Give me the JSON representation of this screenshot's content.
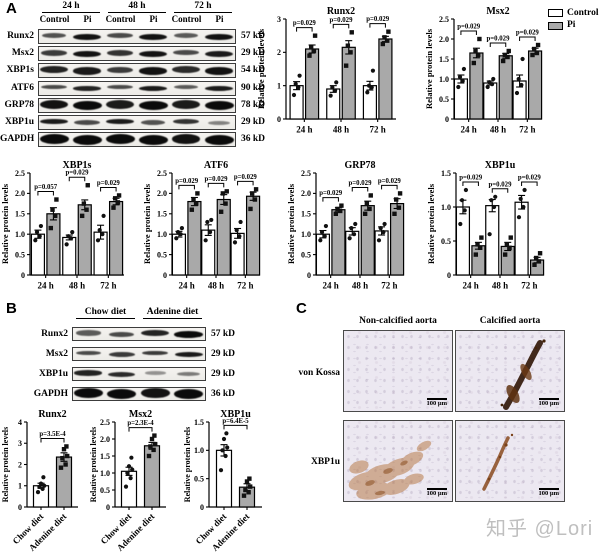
{
  "watermark": "知乎 @Lori",
  "legend": {
    "items": [
      {
        "label": "Control",
        "color": "#ffffff"
      },
      {
        "label": "Pi",
        "color": "#a9a9a9"
      }
    ]
  },
  "panel_a": {
    "label": "A",
    "blot": {
      "time_groups": [
        "24 h",
        "48 h",
        "72 h"
      ],
      "lane_labels": [
        "Control",
        "Pi",
        "Control",
        "Pi",
        "Control",
        "Pi"
      ],
      "rows": [
        {
          "protein": "Runx2",
          "kd": "57 kD",
          "thickness": 6,
          "bands": [
            0.55,
            0.95,
            0.6,
            0.95,
            0.5,
            0.95
          ]
        },
        {
          "protein": "Msx2",
          "kd": "29 kD",
          "thickness": 6,
          "bands": [
            0.7,
            0.95,
            0.75,
            0.95,
            0.6,
            0.9
          ]
        },
        {
          "protein": "XBP1s",
          "kd": "54 kD",
          "thickness": 7,
          "bands": [
            0.85,
            0.9,
            0.7,
            0.95,
            0.8,
            0.95
          ]
        },
        {
          "protein": "ATF6",
          "kd": "90 kD",
          "thickness": 4.5,
          "bands": [
            0.6,
            0.85,
            0.6,
            0.9,
            0.5,
            0.9
          ]
        },
        {
          "protein": "GRP78",
          "kd": "78 kD",
          "thickness": 8.5,
          "bands": [
            0.95,
            1,
            0.9,
            1,
            0.9,
            1
          ]
        },
        {
          "protein": "XBP1u",
          "kd": "29 kD",
          "thickness": 5.5,
          "bands": [
            0.9,
            0.6,
            0.9,
            0.55,
            0.75,
            0.25
          ]
        },
        {
          "protein": "GAPDH",
          "kd": "36 kD",
          "thickness": 9,
          "bands": [
            1,
            1,
            1,
            1,
            0.95,
            1
          ]
        }
      ]
    },
    "charts": [
      {
        "id": "a-runx2",
        "type": "bar",
        "title": "Runx2",
        "ylabel": "Relative protein levels",
        "ylim": [
          0,
          3
        ],
        "yticks": [
          0,
          1,
          2,
          3
        ],
        "ytick_labels": [
          "0",
          "1",
          "2",
          "3"
        ],
        "categories": [
          "24 h",
          "48 h",
          "72 h"
        ],
        "p_values": [
          "p=0.029",
          "p=0.029",
          "p=0.029"
        ],
        "series": [
          {
            "name": "Control",
            "color": "#ffffff",
            "marker": "circle",
            "values": [
              1.0,
              0.9,
              1.0
            ],
            "errors": [
              0.12,
              0.1,
              0.13
            ],
            "points": [
              [
                0.72,
                0.95,
                1.05,
                1.3
              ],
              [
                0.7,
                0.85,
                0.95,
                1.1
              ],
              [
                0.8,
                0.95,
                1.0,
                1.45
              ]
            ]
          },
          {
            "name": "Pi",
            "color": "#a9a9a9",
            "marker": "square",
            "values": [
              2.1,
              2.15,
              2.4
            ],
            "errors": [
              0.12,
              0.2,
              0.08
            ],
            "points": [
              [
                1.9,
                2.05,
                2.15,
                2.5
              ],
              [
                1.6,
                2.0,
                2.2,
                2.6
              ],
              [
                2.25,
                2.35,
                2.45,
                2.62
              ]
            ]
          }
        ]
      },
      {
        "id": "a-msx2",
        "type": "bar",
        "title": "Msx2",
        "ylabel": "Relative protein levels",
        "ylim": [
          0,
          2.5
        ],
        "yticks": [
          0,
          0.5,
          1,
          1.5,
          2,
          2.5
        ],
        "ytick_labels": [
          "0",
          "0.5",
          "1.0",
          "1.5",
          "2.0",
          "2.5"
        ],
        "categories": [
          "24 h",
          "48 h",
          "72 h"
        ],
        "p_values": [
          "p=0.029",
          "p=0.029",
          "p=0.029"
        ],
        "series": [
          {
            "name": "Control",
            "color": "#ffffff",
            "marker": "circle",
            "values": [
              1.0,
              0.9,
              0.95
            ],
            "errors": [
              0.1,
              0.05,
              0.15
            ],
            "points": [
              [
                0.8,
                0.95,
                1.05,
                1.25
              ],
              [
                0.8,
                0.87,
                0.92,
                1.0
              ],
              [
                0.65,
                0.85,
                1.0,
                1.5
              ]
            ]
          },
          {
            "name": "Pi",
            "color": "#a9a9a9",
            "marker": "square",
            "values": [
              1.65,
              1.58,
              1.7
            ],
            "errors": [
              0.12,
              0.06,
              0.07
            ],
            "points": [
              [
                1.4,
                1.6,
                1.7,
                2.0
              ],
              [
                1.45,
                1.55,
                1.6,
                1.7
              ],
              [
                1.6,
                1.65,
                1.75,
                1.85
              ]
            ]
          }
        ]
      },
      {
        "id": "a-xbp1s",
        "type": "bar",
        "title": "XBP1s",
        "ylabel": "Relative protein levels",
        "ylim": [
          0,
          2.5
        ],
        "yticks": [
          0,
          0.5,
          1,
          1.5,
          2,
          2.5
        ],
        "ytick_labels": [
          "0",
          "0.5",
          "1.0",
          "1.5",
          "2.0",
          "2.5"
        ],
        "categories": [
          "24 h",
          "48 h",
          "72 h"
        ],
        "p_values": [
          "p=0.057",
          "p=0.029",
          "p=0.029"
        ],
        "series": [
          {
            "name": "Control",
            "color": "#ffffff",
            "marker": "circle",
            "values": [
              1.0,
              0.92,
              1.05
            ],
            "errors": [
              0.1,
              0.06,
              0.17
            ],
            "points": [
              [
                0.85,
                0.95,
                1.05,
                1.2
              ],
              [
                0.75,
                0.9,
                0.95,
                1.05
              ],
              [
                0.85,
                1.0,
                1.1,
                1.45
              ]
            ]
          },
          {
            "name": "Pi",
            "color": "#a9a9a9",
            "marker": "square",
            "values": [
              1.5,
              1.72,
              1.8
            ],
            "errors": [
              0.15,
              0.12,
              0.08
            ],
            "points": [
              [
                1.15,
                1.45,
                1.6,
                1.85
              ],
              [
                1.45,
                1.6,
                1.75,
                2.2
              ],
              [
                1.65,
                1.78,
                1.88,
                1.95
              ]
            ]
          }
        ]
      },
      {
        "id": "a-atf6",
        "type": "bar",
        "title": "ATF6",
        "ylabel": "Relative protein levels",
        "ylim": [
          0,
          2.5
        ],
        "yticks": [
          0,
          0.5,
          1,
          1.5,
          2,
          2.5
        ],
        "ytick_labels": [
          "0",
          "0.5",
          "1.0",
          "1.5",
          "2.0",
          "2.5"
        ],
        "categories": [
          "24 h",
          "48 h",
          "72 h"
        ],
        "p_values": [
          "p=0.029",
          "p=0.029",
          "p=0.029"
        ],
        "series": [
          {
            "name": "Control",
            "color": "#ffffff",
            "marker": "circle",
            "values": [
              1.0,
              1.1,
              1.02
            ],
            "errors": [
              0.07,
              0.13,
              0.12
            ],
            "points": [
              [
                0.9,
                1.0,
                1.05,
                1.15
              ],
              [
                0.85,
                1.05,
                1.3,
                1.35
              ],
              [
                0.8,
                0.95,
                1.1,
                1.3
              ]
            ]
          },
          {
            "name": "Pi",
            "color": "#a9a9a9",
            "marker": "square",
            "values": [
              1.8,
              1.85,
              1.93
            ],
            "errors": [
              0.1,
              0.12,
              0.1
            ],
            "points": [
              [
                1.6,
                1.75,
                1.85,
                2.0
              ],
              [
                1.55,
                1.75,
                2.0,
                2.05
              ],
              [
                1.62,
                1.85,
                2.0,
                2.1
              ]
            ]
          }
        ]
      },
      {
        "id": "a-grp78",
        "type": "bar",
        "title": "GRP78",
        "ylabel": "Relative protein levels",
        "ylim": [
          0,
          2.5
        ],
        "yticks": [
          0,
          0.5,
          1,
          1.5,
          2,
          2.5
        ],
        "ytick_labels": [
          "0",
          "0.5",
          "1.0",
          "1.5",
          "2.0",
          "2.5"
        ],
        "categories": [
          "24 h",
          "48 h",
          "72 h"
        ],
        "p_values": [
          "p=0.029",
          "p=0.029",
          "p=0.029"
        ],
        "series": [
          {
            "name": "Control",
            "color": "#ffffff",
            "marker": "circle",
            "values": [
              1.0,
              1.07,
              1.08
            ],
            "errors": [
              0.09,
              0.09,
              0.1
            ],
            "points": [
              [
                0.85,
                0.95,
                1.05,
                1.2
              ],
              [
                0.9,
                1.0,
                1.15,
                1.25
              ],
              [
                0.85,
                1.05,
                1.15,
                1.25
              ]
            ]
          },
          {
            "name": "Pi",
            "color": "#a9a9a9",
            "marker": "square",
            "values": [
              1.6,
              1.7,
              1.75
            ],
            "errors": [
              0.05,
              0.11,
              0.12
            ],
            "points": [
              [
                1.5,
                1.57,
                1.62,
                1.7
              ],
              [
                1.5,
                1.62,
                1.75,
                1.95
              ],
              [
                1.5,
                1.65,
                1.85,
                2.0
              ]
            ]
          }
        ]
      },
      {
        "id": "a-xbp1u",
        "type": "bar",
        "title": "XBP1u",
        "ylabel": "Relative protein levels",
        "ylim": [
          0,
          1.5
        ],
        "yticks": [
          0,
          0.5,
          1,
          1.5
        ],
        "ytick_labels": [
          "0",
          "0.5",
          "1.0",
          "1.5"
        ],
        "categories": [
          "24 h",
          "48 h",
          "72 h"
        ],
        "p_values": [
          "p=0.029",
          "p=0.029",
          "p=0.029"
        ],
        "series": [
          {
            "name": "Control",
            "color": "#ffffff",
            "marker": "circle",
            "values": [
              1.0,
              1.02,
              1.07
            ],
            "errors": [
              0.1,
              0.09,
              0.1
            ],
            "points": [
              [
                0.75,
                0.95,
                1.1,
                1.25
              ],
              [
                0.6,
                1.0,
                1.1,
                1.15
              ],
              [
                0.85,
                1.0,
                1.12,
                1.25
              ]
            ]
          },
          {
            "name": "Pi",
            "color": "#a9a9a9",
            "marker": "square",
            "values": [
              0.43,
              0.42,
              0.22
            ],
            "errors": [
              0.05,
              0.06,
              0.04
            ],
            "points": [
              [
                0.3,
                0.4,
                0.45,
                0.55
              ],
              [
                0.3,
                0.4,
                0.45,
                0.55
              ],
              [
                0.15,
                0.2,
                0.25,
                0.32
              ]
            ]
          }
        ]
      }
    ]
  },
  "panel_b": {
    "label": "B",
    "blot": {
      "diet_groups": [
        "Chow diet",
        "Adenine diet"
      ],
      "rows": [
        {
          "protein": "Runx2",
          "kd": "57 kD",
          "thickness": 6,
          "bands": [
            0.5,
            0.6,
            0.85,
            1
          ]
        },
        {
          "protein": "Msx2",
          "kd": "29 kD",
          "thickness": 5,
          "bands": [
            0.6,
            0.7,
            0.7,
            0.9
          ]
        },
        {
          "protein": "XBP1u",
          "kd": "29 kD",
          "thickness": 5,
          "bands": [
            0.85,
            0.8,
            0.15,
            0.3
          ]
        },
        {
          "protein": "GAPDH",
          "kd": "36 kD",
          "thickness": 9,
          "bands": [
            1,
            1,
            0.95,
            1
          ]
        }
      ]
    },
    "charts": [
      {
        "id": "b-runx2",
        "type": "bar",
        "title": "Runx2",
        "ylabel": "Relative protein levels",
        "ylim": [
          0,
          4
        ],
        "yticks": [
          0,
          1,
          2,
          3,
          4
        ],
        "ytick_labels": [
          "0",
          "1",
          "2",
          "3",
          "4"
        ],
        "xlabel_mode": "bar",
        "p_values": [
          "p=3.5E-4"
        ],
        "series": [
          {
            "name": "Chow diet",
            "color": "#ffffff",
            "marker": "circle",
            "values": [
              1.0
            ],
            "errors": [
              0.12
            ],
            "points": [
              [
                0.7,
                0.85,
                0.95,
                1.0,
                1.1,
                1.4
              ]
            ]
          },
          {
            "name": "Adenine diet",
            "color": "#a9a9a9",
            "marker": "square",
            "values": [
              2.35
            ],
            "errors": [
              0.2
            ],
            "points": [
              [
                1.85,
                2.0,
                2.3,
                2.4,
                2.72,
                2.85
              ]
            ]
          }
        ]
      },
      {
        "id": "b-msx2",
        "type": "bar",
        "title": "Msx2",
        "ylabel": "Relative protein levels",
        "ylim": [
          0,
          2.5
        ],
        "yticks": [
          0,
          0.5,
          1,
          1.5,
          2,
          2.5
        ],
        "ytick_labels": [
          "0",
          "0.5",
          "1.0",
          "1.5",
          "2.0",
          "2.5"
        ],
        "xlabel_mode": "bar",
        "p_values": [
          "p=2.3E-4"
        ],
        "series": [
          {
            "name": "Chow diet",
            "color": "#ffffff",
            "marker": "circle",
            "values": [
              1.05
            ],
            "errors": [
              0.12
            ],
            "points": [
              [
                0.6,
                0.85,
                1.0,
                1.1,
                1.2,
                1.45
              ]
            ]
          },
          {
            "name": "Adenine diet",
            "color": "#a9a9a9",
            "marker": "square",
            "values": [
              1.8
            ],
            "errors": [
              0.1
            ],
            "points": [
              [
                1.5,
                1.68,
                1.78,
                1.85,
                2.0,
                2.1
              ]
            ]
          }
        ]
      },
      {
        "id": "b-xbp1u",
        "type": "bar",
        "title": "XBP1u",
        "ylabel": "Relative protein levels",
        "ylim": [
          0,
          1.5
        ],
        "yticks": [
          0,
          0.5,
          1,
          1.5
        ],
        "ytick_labels": [
          "0",
          "0.5",
          "1.0",
          "1.5"
        ],
        "xlabel_mode": "bar",
        "p_values": [
          "p=6.4E-5"
        ],
        "series": [
          {
            "name": "Chow diet",
            "color": "#ffffff",
            "marker": "circle",
            "values": [
              1.0
            ],
            "errors": [
              0.1
            ],
            "points": [
              [
                0.65,
                0.9,
                1.0,
                1.05,
                1.2,
                1.3
              ]
            ]
          },
          {
            "name": "Adenine diet",
            "color": "#a9a9a9",
            "marker": "square",
            "values": [
              0.35
            ],
            "errors": [
              0.06
            ],
            "points": [
              [
                0.2,
                0.26,
                0.3,
                0.36,
                0.45,
                0.5
              ]
            ]
          }
        ]
      }
    ]
  },
  "panel_c": {
    "label": "C",
    "col_headers": [
      "Non-calcified aorta",
      "Calcified aorta"
    ],
    "rows": [
      {
        "label": "von Kossa"
      },
      {
        "label": "XBP1u"
      }
    ],
    "scale_bar": "100 μm"
  }
}
